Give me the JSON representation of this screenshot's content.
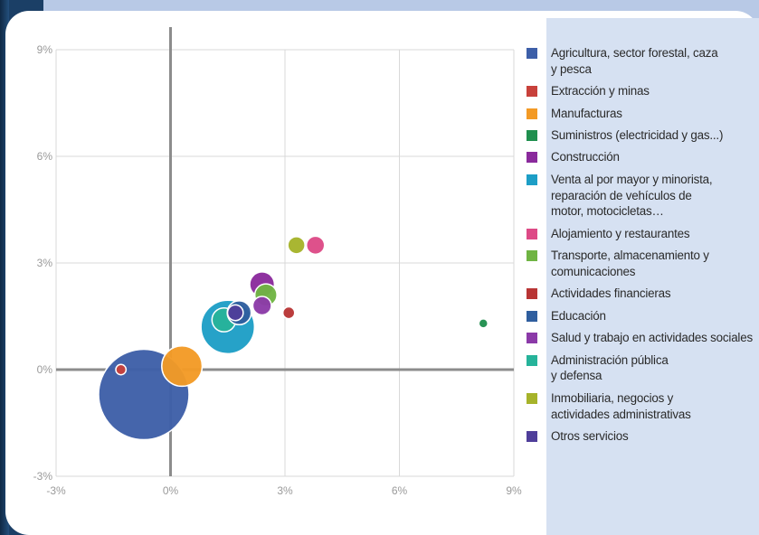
{
  "colors": {
    "page_bg": "#1b3f66",
    "legend_panel": "#d6e1f2",
    "axis_line": "#8c8c8c",
    "grid_line": "#d9d9d9"
  },
  "chart_data": {
    "type": "bubble",
    "title": "",
    "xlabel": "",
    "ylabel": "",
    "xlim": [
      -3,
      9
    ],
    "ylim": [
      -3,
      9
    ],
    "x_ticks": [
      -3,
      0,
      3,
      6,
      9
    ],
    "y_ticks": [
      -3,
      0,
      3,
      6,
      9
    ],
    "x_tick_labels": [
      "-3%",
      "0%",
      "3%",
      "6%",
      "9%"
    ],
    "y_tick_labels": [
      "-3%",
      "0%",
      "3%",
      "6%",
      "9%"
    ],
    "grid": true,
    "legend_position": "right",
    "series": [
      {
        "name": "Agricultura, sector forestal, caza\ny pesca",
        "color": "#3d5fa8",
        "x": -0.7,
        "y": -0.7,
        "size": 100
      },
      {
        "name": "Extracción y minas",
        "color": "#c8413b",
        "x": -1.3,
        "y": 0.0,
        "size": 1.3
      },
      {
        "name": "Manufacturas",
        "color": "#f39a25",
        "x": 0.3,
        "y": 0.1,
        "size": 20
      },
      {
        "name": "Suministros (electricidad y gas...)",
        "color": "#1f8f4e",
        "x": 8.2,
        "y": 1.3,
        "size": 1
      },
      {
        "name": "Construcción",
        "color": "#8a2a9c",
        "x": 2.4,
        "y": 2.4,
        "size": 7.5
      },
      {
        "name": "Venta al por mayor y minorista,\nreparación de vehículos de\nmotor, motocicletas…",
        "color": "#1d9ec6",
        "x": 1.5,
        "y": 1.2,
        "size": 35
      },
      {
        "name": "Alojamiento y restaurantes",
        "color": "#dd4a86",
        "x": 3.8,
        "y": 3.5,
        "size": 4
      },
      {
        "name": "Transporte,  almacenamiento y\ncomunicaciones",
        "color": "#6fb443",
        "x": 2.5,
        "y": 2.1,
        "size": 6
      },
      {
        "name": "Actividades financieras",
        "color": "#b83535",
        "x": 3.1,
        "y": 1.6,
        "size": 1.7
      },
      {
        "name": "Educación",
        "color": "#2f5e9e",
        "x": 1.8,
        "y": 1.6,
        "size": 7
      },
      {
        "name": "Salud y trabajo en actividades sociales",
        "color": "#8b3aa8",
        "x": 2.4,
        "y": 1.8,
        "size": 4.2
      },
      {
        "name": "Administración pública\ny defensa",
        "color": "#26b39a",
        "x": 1.4,
        "y": 1.4,
        "size": 7
      },
      {
        "name": "Inmobiliaria, negocios y\nactividades administrativas",
        "color": "#a6b32a",
        "x": 3.3,
        "y": 3.5,
        "size": 3.6
      },
      {
        "name": "Otros servicios",
        "color": "#4f3e9a",
        "x": 1.7,
        "y": 1.6,
        "size": 3
      }
    ],
    "draw_order": [
      0,
      5,
      11,
      2,
      9,
      4,
      7,
      10,
      8,
      6,
      12,
      1,
      3,
      13
    ]
  }
}
